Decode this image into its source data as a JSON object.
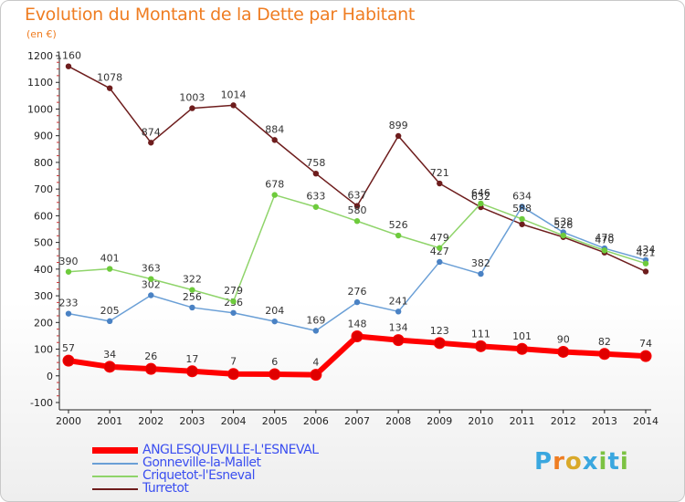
{
  "title": "Evolution du Montant de la Dette par Habitant",
  "unit": "(en €)",
  "logo": {
    "text": "Proxiti",
    "letter_colors": [
      "#3aa7df",
      "#ef7d22",
      "#d9a92a",
      "#3aa7df",
      "#7cc242",
      "#3aa7df",
      "#7cc242"
    ]
  },
  "chart_data": {
    "type": "line",
    "title": "Evolution du Montant de la Dette par Habitant",
    "xlabel": "",
    "ylabel": "(en €)",
    "ylim": [
      -100,
      1200
    ],
    "grid": false,
    "legend_position": "bottom-left",
    "x": [
      "2000",
      "2001",
      "2002",
      "2003",
      "2004",
      "2005",
      "2006",
      "2007",
      "2008",
      "2009",
      "2010",
      "2011",
      "2012",
      "2013",
      "2014"
    ],
    "y_ticks": [
      -100,
      0,
      100,
      200,
      300,
      400,
      500,
      600,
      700,
      800,
      900,
      1000,
      1100,
      1200
    ],
    "series": [
      {
        "name": "Turretot",
        "color": "#6e1d1d",
        "marker": "#6e1d1d",
        "width": 1.5,
        "values": [
          1160,
          1078,
          874,
          1003,
          1014,
          884,
          758,
          637,
          899,
          721,
          632,
          568,
          520,
          462,
          391
        ],
        "labels": [
          "1160",
          "1078",
          "874",
          "1003",
          "1014",
          "884",
          "758",
          "637",
          "899",
          "721",
          "632",
          "",
          "",
          "",
          ""
        ]
      },
      {
        "name": "Gonneville-la-Mallet",
        "color": "#6a9fd6",
        "marker": "#4a82c4",
        "width": 1.5,
        "values": [
          233,
          205,
          302,
          256,
          236,
          204,
          169,
          276,
          241,
          427,
          382,
          634,
          538,
          478,
          434
        ],
        "labels": [
          "233",
          "205",
          "302",
          "256",
          "236",
          "204",
          "169",
          "276",
          "241",
          "427",
          "382",
          "634",
          "538",
          "478",
          "434"
        ]
      },
      {
        "name": "Criquetot-l'Esneval",
        "color": "#8fd46a",
        "marker": "#6ecb3c",
        "width": 1.5,
        "values": [
          390,
          401,
          363,
          322,
          279,
          678,
          633,
          580,
          526,
          479,
          646,
          588,
          526,
          470,
          421
        ],
        "labels": [
          "390",
          "401",
          "363",
          "322",
          "279",
          "678",
          "633",
          "580",
          "526",
          "479",
          "646",
          "588",
          "526",
          "470",
          "421"
        ]
      },
      {
        "name": "ANGLESQUEVILLE-L'ESNEVAL",
        "color": "#ff0000",
        "marker": "#e00000",
        "width": 6,
        "values": [
          57,
          34,
          26,
          17,
          7,
          6,
          4,
          148,
          134,
          123,
          111,
          101,
          90,
          82,
          74
        ],
        "labels": [
          "57",
          "34",
          "26",
          "17",
          "7",
          "6",
          "4",
          "148",
          "134",
          "123",
          "111",
          "101",
          "90",
          "82",
          "74"
        ]
      }
    ],
    "legend": [
      {
        "name": "ANGLESQUEVILLE-L'ESNEVAL",
        "color": "#ff0000"
      },
      {
        "name": "Gonneville-la-Mallet",
        "color": "#6a9fd6"
      },
      {
        "name": "Criquetot-l'Esneval",
        "color": "#8fd46a"
      },
      {
        "name": "Turretot",
        "color": "#6e1d1d"
      }
    ]
  }
}
